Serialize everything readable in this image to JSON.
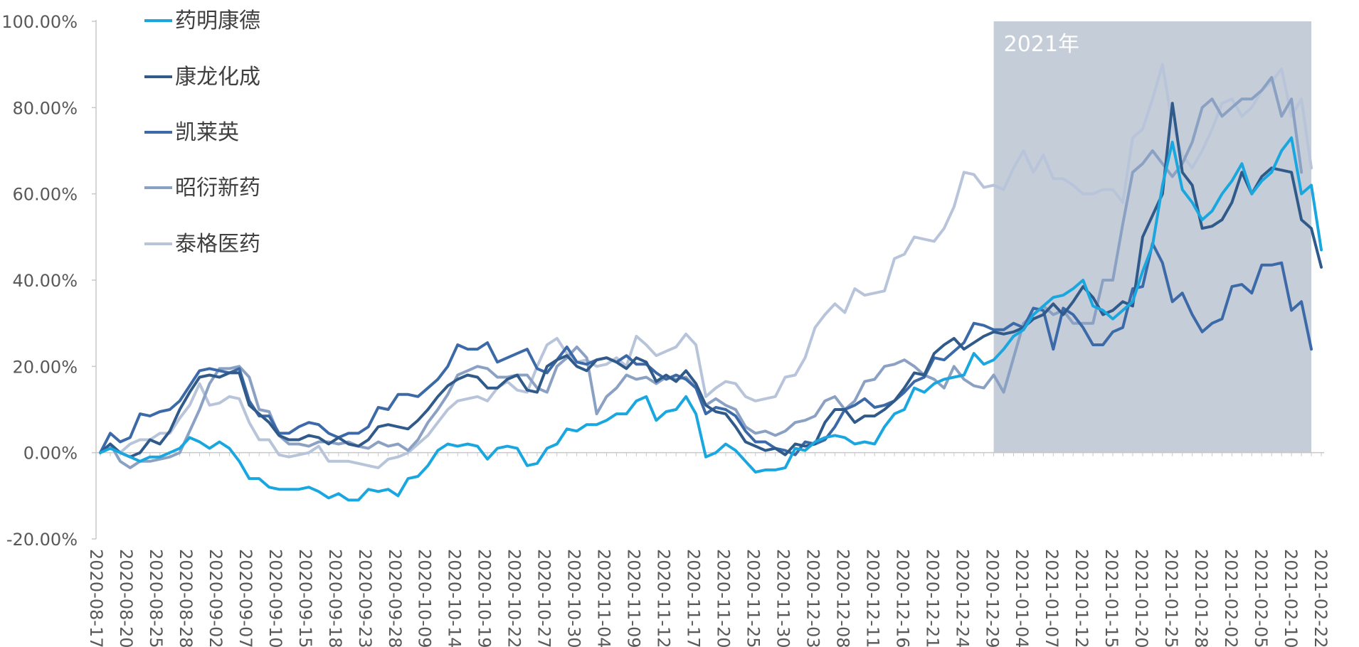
{
  "chart_data": {
    "type": "line",
    "title": "",
    "xlabel": "",
    "ylabel": "",
    "ylim": [
      -0.2,
      1.0
    ],
    "yticks": [
      -0.2,
      0.0,
      0.2,
      0.4,
      0.6,
      0.8,
      1.0
    ],
    "ytick_labels": [
      "-20.00%",
      "0.00%",
      "20.00%",
      "40.00%",
      "60.00%",
      "80.00%",
      "100.00%"
    ],
    "grid": false,
    "legend": "top-left",
    "highlight": {
      "label": "2021年",
      "from_index": 90,
      "to_index": 122,
      "color": "#c5cdd8"
    },
    "x_labels": [
      "2020-08-17",
      "2020-08-20",
      "2020-08-25",
      "2020-08-28",
      "2020-09-02",
      "2020-09-07",
      "2020-09-10",
      "2020-09-15",
      "2020-09-18",
      "2020-09-23",
      "2020-09-28",
      "2020-10-09",
      "2020-10-14",
      "2020-10-19",
      "2020-10-22",
      "2020-10-27",
      "2020-10-30",
      "2020-11-04",
      "2020-11-09",
      "2020-11-12",
      "2020-11-17",
      "2020-11-20",
      "2020-11-25",
      "2020-11-30",
      "2020-12-03",
      "2020-12-08",
      "2020-12-11",
      "2020-12-16",
      "2020-12-21",
      "2020-12-24",
      "2020-12-29",
      "2021-01-04",
      "2021-01-07",
      "2021-01-12",
      "2021-01-15",
      "2021-01-20",
      "2021-01-25",
      "2021-01-28",
      "2021-02-02",
      "2021-02-05",
      "2021-02-10",
      "2021-02-22"
    ],
    "series": [
      {
        "name": "药明康德",
        "color": "#1aa7e0",
        "values": [
          0.0,
          0.01,
          0.0,
          -0.01,
          -0.02,
          -0.01,
          -0.01,
          0.0,
          0.01,
          0.035,
          0.025,
          0.01,
          0.025,
          0.01,
          -0.02,
          -0.06,
          -0.06,
          -0.08,
          -0.085,
          -0.085,
          -0.085,
          -0.08,
          -0.09,
          -0.105,
          -0.095,
          -0.11,
          -0.11,
          -0.085,
          -0.09,
          -0.085,
          -0.1,
          -0.06,
          -0.055,
          -0.03,
          0.005,
          0.02,
          0.015,
          0.02,
          0.015,
          -0.015,
          0.01,
          0.015,
          0.01,
          -0.03,
          -0.025,
          0.01,
          0.02,
          0.055,
          0.05,
          0.065,
          0.065,
          0.075,
          0.09,
          0.09,
          0.12,
          0.13,
          0.075,
          0.095,
          0.1,
          0.13,
          0.09,
          -0.01,
          0.0,
          0.02,
          0.005,
          -0.02,
          -0.045,
          -0.04,
          -0.04,
          -0.035,
          0.01,
          0.005,
          0.025,
          0.035,
          0.04,
          0.035,
          0.02,
          0.025,
          0.02,
          0.06,
          0.09,
          0.1,
          0.15,
          0.14,
          0.16,
          0.17,
          0.175,
          0.18,
          0.23,
          0.205,
          0.215,
          0.24,
          0.27,
          0.285,
          0.32,
          0.34,
          0.36,
          0.365,
          0.38,
          0.4,
          0.34,
          0.33,
          0.31,
          0.33,
          0.35,
          0.42,
          0.48,
          0.62,
          0.72,
          0.61,
          0.58,
          0.54,
          0.56,
          0.6,
          0.63,
          0.67,
          0.6,
          0.63,
          0.65,
          0.7,
          0.73,
          0.6,
          0.62,
          0.47
        ]
      },
      {
        "name": "康龙化成",
        "color": "#2f5a8a",
        "values": [
          0.0,
          0.02,
          0.0,
          -0.01,
          0.0,
          0.03,
          0.02,
          0.05,
          0.1,
          0.14,
          0.175,
          0.18,
          0.175,
          0.185,
          0.185,
          0.11,
          0.09,
          0.07,
          0.04,
          0.03,
          0.03,
          0.04,
          0.035,
          0.02,
          0.035,
          0.02,
          0.015,
          0.03,
          0.06,
          0.065,
          0.06,
          0.055,
          0.075,
          0.1,
          0.13,
          0.155,
          0.17,
          0.18,
          0.175,
          0.15,
          0.15,
          0.17,
          0.18,
          0.145,
          0.14,
          0.2,
          0.215,
          0.225,
          0.2,
          0.19,
          0.215,
          0.22,
          0.21,
          0.195,
          0.22,
          0.21,
          0.165,
          0.18,
          0.165,
          0.19,
          0.16,
          0.11,
          0.095,
          0.09,
          0.06,
          0.025,
          0.015,
          0.005,
          0.01,
          -0.005,
          0.02,
          0.015,
          0.02,
          0.07,
          0.1,
          0.1,
          0.07,
          0.085,
          0.085,
          0.1,
          0.12,
          0.15,
          0.185,
          0.18,
          0.23,
          0.25,
          0.265,
          0.24,
          0.255,
          0.27,
          0.28,
          0.275,
          0.28,
          0.29,
          0.31,
          0.32,
          0.345,
          0.32,
          0.35,
          0.385,
          0.36,
          0.32,
          0.33,
          0.35,
          0.34,
          0.5,
          0.55,
          0.6,
          0.81,
          0.65,
          0.62,
          0.52,
          0.525,
          0.54,
          0.58,
          0.65,
          0.6,
          0.64,
          0.66,
          0.655,
          0.65,
          0.54,
          0.52,
          0.43
        ]
      },
      {
        "name": "凯莱英",
        "color": "#3c6aa8",
        "values": [
          0.0,
          0.045,
          0.025,
          0.035,
          0.09,
          0.085,
          0.095,
          0.1,
          0.12,
          0.155,
          0.19,
          0.195,
          0.19,
          0.185,
          0.195,
          0.12,
          0.085,
          0.085,
          0.045,
          0.045,
          0.06,
          0.07,
          0.065,
          0.045,
          0.035,
          0.045,
          0.045,
          0.06,
          0.105,
          0.1,
          0.135,
          0.135,
          0.13,
          0.15,
          0.17,
          0.2,
          0.25,
          0.24,
          0.24,
          0.255,
          0.21,
          0.22,
          0.23,
          0.24,
          0.195,
          0.185,
          0.215,
          0.245,
          0.21,
          0.205,
          0.215,
          0.22,
          0.21,
          0.225,
          0.205,
          0.205,
          0.185,
          0.17,
          0.18,
          0.17,
          0.15,
          0.09,
          0.105,
          0.1,
          0.085,
          0.05,
          0.025,
          0.025,
          0.01,
          0.005,
          -0.005,
          0.025,
          0.02,
          0.03,
          0.06,
          0.1,
          0.11,
          0.125,
          0.105,
          0.11,
          0.12,
          0.14,
          0.165,
          0.175,
          0.22,
          0.215,
          0.235,
          0.255,
          0.3,
          0.295,
          0.285,
          0.285,
          0.3,
          0.29,
          0.335,
          0.33,
          0.24,
          0.335,
          0.32,
          0.29,
          0.25,
          0.25,
          0.28,
          0.29,
          0.38,
          0.385,
          0.485,
          0.44,
          0.35,
          0.37,
          0.32,
          0.28,
          0.3,
          0.31,
          0.385,
          0.39,
          0.37,
          0.435,
          0.435,
          0.44,
          0.33,
          0.35,
          0.24
        ]
      },
      {
        "name": "昭衍新药",
        "color": "#8ba1c3",
        "values": [
          0.0,
          0.02,
          -0.02,
          -0.035,
          -0.02,
          -0.02,
          -0.015,
          -0.01,
          0.0,
          0.05,
          0.1,
          0.16,
          0.195,
          0.195,
          0.2,
          0.175,
          0.1,
          0.095,
          0.04,
          0.02,
          0.02,
          0.015,
          0.025,
          0.025,
          0.02,
          0.025,
          0.015,
          0.01,
          0.025,
          0.015,
          0.02,
          0.005,
          0.03,
          0.07,
          0.1,
          0.135,
          0.18,
          0.19,
          0.2,
          0.195,
          0.175,
          0.175,
          0.18,
          0.18,
          0.15,
          0.14,
          0.2,
          0.22,
          0.245,
          0.22,
          0.09,
          0.13,
          0.15,
          0.18,
          0.17,
          0.175,
          0.16,
          0.175,
          0.17,
          0.175,
          0.15,
          0.11,
          0.125,
          0.11,
          0.1,
          0.06,
          0.045,
          0.05,
          0.04,
          0.05,
          0.07,
          0.075,
          0.085,
          0.12,
          0.13,
          0.1,
          0.12,
          0.165,
          0.17,
          0.2,
          0.205,
          0.215,
          0.2,
          0.18,
          0.17,
          0.15,
          0.2,
          0.17,
          0.155,
          0.15,
          0.18,
          0.14,
          0.22,
          0.3,
          0.32,
          0.34,
          0.32,
          0.33,
          0.3,
          0.3,
          0.3,
          0.4,
          0.4,
          0.53,
          0.65,
          0.67,
          0.7,
          0.67,
          0.64,
          0.67,
          0.72,
          0.8,
          0.82,
          0.78,
          0.8,
          0.82,
          0.82,
          0.84,
          0.87,
          0.78,
          0.82,
          0.65
        ]
      },
      {
        "name": "泰格医药",
        "color": "#b8c4da",
        "values": [
          0.0,
          0.02,
          0.0,
          0.02,
          0.03,
          0.03,
          0.045,
          0.045,
          0.08,
          0.11,
          0.16,
          0.11,
          0.115,
          0.13,
          0.125,
          0.07,
          0.03,
          0.03,
          -0.005,
          -0.01,
          -0.005,
          0.0,
          0.015,
          -0.02,
          -0.02,
          -0.02,
          -0.025,
          -0.03,
          -0.035,
          -0.015,
          -0.01,
          0.0,
          0.02,
          0.04,
          0.07,
          0.1,
          0.12,
          0.125,
          0.13,
          0.12,
          0.15,
          0.165,
          0.145,
          0.14,
          0.2,
          0.25,
          0.265,
          0.23,
          0.21,
          0.215,
          0.2,
          0.205,
          0.22,
          0.2,
          0.27,
          0.25,
          0.225,
          0.235,
          0.245,
          0.275,
          0.25,
          0.13,
          0.15,
          0.165,
          0.16,
          0.13,
          0.12,
          0.125,
          0.13,
          0.175,
          0.18,
          0.22,
          0.29,
          0.32,
          0.345,
          0.325,
          0.38,
          0.365,
          0.37,
          0.375,
          0.45,
          0.46,
          0.5,
          0.495,
          0.49,
          0.52,
          0.57,
          0.65,
          0.645,
          0.615,
          0.62,
          0.61,
          0.66,
          0.7,
          0.65,
          0.69,
          0.635,
          0.635,
          0.62,
          0.6,
          0.6,
          0.61,
          0.61,
          0.58,
          0.73,
          0.75,
          0.82,
          0.9,
          0.76,
          0.69,
          0.66,
          0.7,
          0.75,
          0.81,
          0.82,
          0.78,
          0.8,
          0.84,
          0.86,
          0.89,
          0.78,
          0.82,
          0.66
        ]
      }
    ]
  }
}
